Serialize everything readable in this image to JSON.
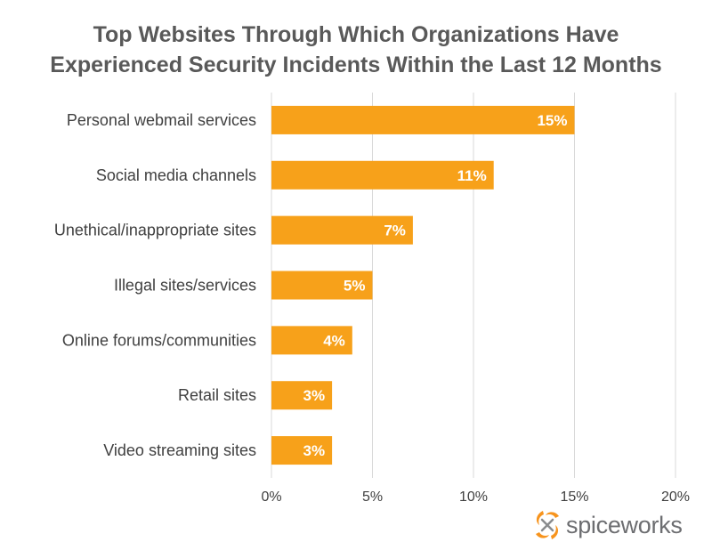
{
  "title_lines": [
    "Top Websites Through Which Organizations Have",
    "Experienced Security Incidents Within the Last 12 Months"
  ],
  "brand": "spiceworks",
  "colors": {
    "bar": "#f7a11a",
    "grid": "#d9d9d9",
    "text": "#404040",
    "title": "#595959",
    "logo_orange": "#f7941d"
  },
  "chart_data": {
    "type": "bar",
    "orientation": "horizontal",
    "categories": [
      "Personal webmail services",
      "Social media channels",
      "Unethical/inappropriate sites",
      "Illegal sites/services",
      "Online forums/communities",
      "Retail sites",
      "Video streaming sites"
    ],
    "values": [
      15,
      11,
      7,
      5,
      4,
      3,
      3
    ],
    "data_labels": [
      "15%",
      "11%",
      "7%",
      "5%",
      "4%",
      "3%",
      "3%"
    ],
    "xlim": [
      0,
      20
    ],
    "ticks": [
      0,
      5,
      10,
      15,
      20
    ],
    "tick_labels": [
      "0%",
      "5%",
      "10%",
      "15%",
      "20%"
    ],
    "grid": true,
    "legend": "none"
  }
}
